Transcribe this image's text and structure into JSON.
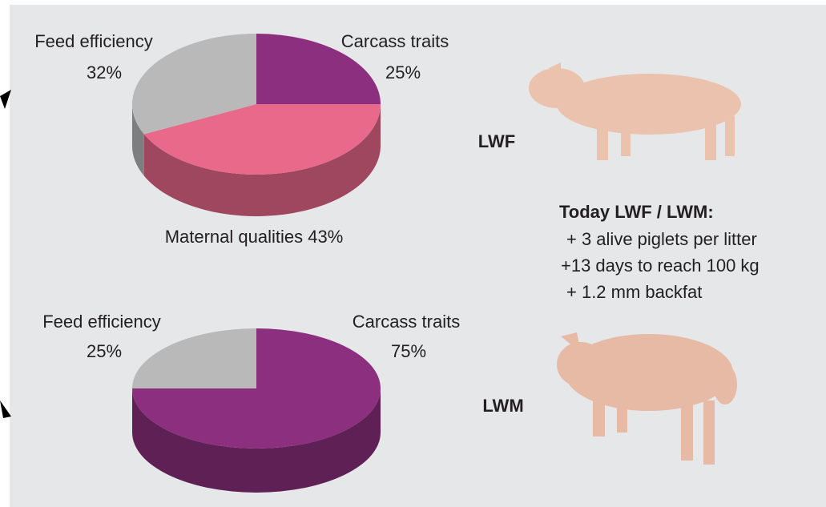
{
  "chart_data": [
    {
      "type": "pie",
      "categories": [
        "Carcass traits",
        "Maternal qualities",
        "Feed efficiency"
      ],
      "values": [
        25,
        43,
        32
      ],
      "value_labels": [
        "25%",
        "43%",
        "32%"
      ],
      "colors": [
        "#8c2f7f",
        "#e9698b",
        "#b9b9b9"
      ]
    },
    {
      "type": "pie",
      "categories": [
        "Carcass traits",
        "Feed efficiency"
      ],
      "values": [
        75,
        25
      ],
      "value_labels": [
        "75%",
        "25%"
      ],
      "colors": [
        "#8c2f7f",
        "#b9b9b9"
      ]
    }
  ],
  "breeds": [
    "LWF",
    "LWM"
  ],
  "panel": {
    "title": "Today LWF / LWM:",
    "lines": [
      "+ 3 alive piglets per litter",
      "+13 days to reach 100 kg",
      "+ 1.2 mm backfat"
    ]
  }
}
